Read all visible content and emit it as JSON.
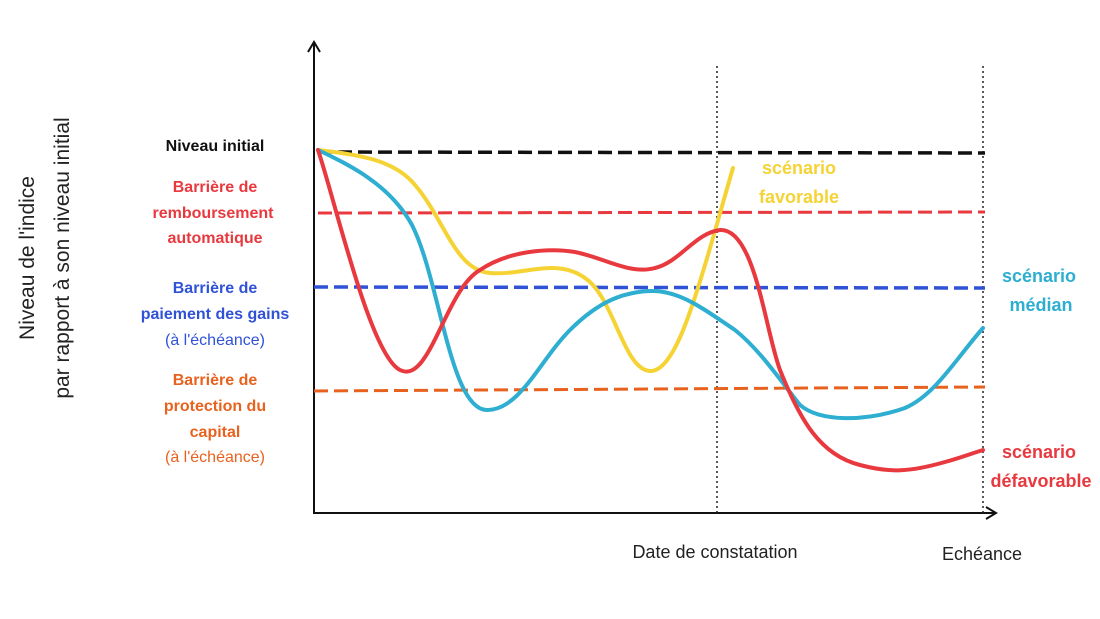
{
  "y_axis_label": {
    "line1": "Niveau de l'indice",
    "line2": "par rapport à son niveau initial"
  },
  "x_axis_labels": {
    "observation": "Date de constatation",
    "maturity": "Echéance"
  },
  "levels": {
    "initial": {
      "label": "Niveau initial",
      "color": "#111111"
    },
    "autocall": {
      "label_lines": [
        "Barrière de",
        "remboursement",
        "automatique"
      ],
      "color": "#e8393f"
    },
    "coupon": {
      "label_lines": [
        "Barrière de",
        "paiement des gains"
      ],
      "note": "(à l'échéance)",
      "color": "#2f52d6"
    },
    "protection": {
      "label_lines": [
        "Barrière de",
        "protection du",
        "capital"
      ],
      "note": "(à l'échéance)",
      "color": "#e8621f"
    }
  },
  "scenarios": {
    "favorable": {
      "label_lines": [
        "scénario",
        "favorable"
      ],
      "color": "#f5d335"
    },
    "median": {
      "label_lines": [
        "scénario",
        "médian"
      ],
      "color": "#2eaed1"
    },
    "unfavorable": {
      "label_lines": [
        "scénario",
        "défavorable"
      ],
      "color": "#e8393f"
    }
  }
}
